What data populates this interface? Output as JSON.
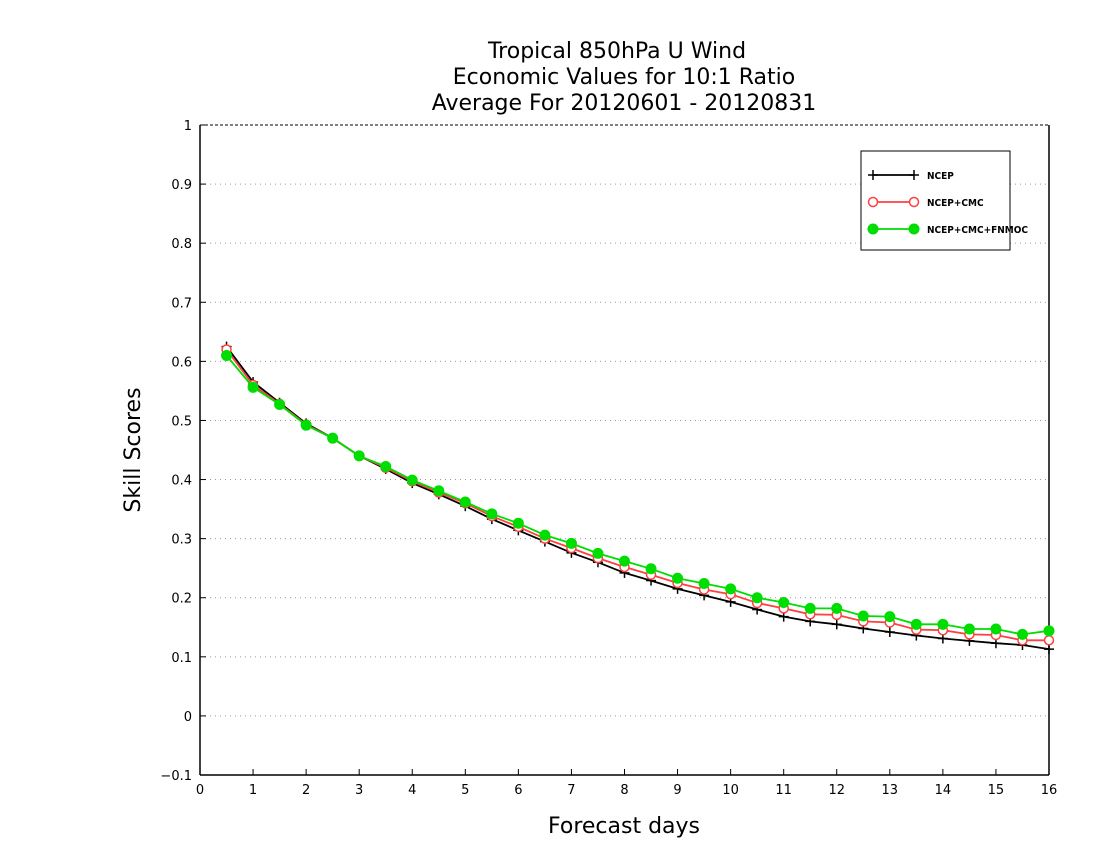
{
  "chart_data": {
    "type": "line",
    "title": [
      "Tropical 850hPa U Wind",
      "Economic Values for 10:1 Ratio",
      "Average For 20120601 - 20120831"
    ],
    "xlabel": "Forecast days",
    "ylabel": "Skill Scores",
    "xlim": [
      0,
      16
    ],
    "ylim": [
      -0.1,
      1
    ],
    "xticks": [
      "0",
      "1",
      "2",
      "3",
      "4",
      "5",
      "6",
      "7",
      "8",
      "9",
      "10",
      "11",
      "12",
      "13",
      "14",
      "15",
      "16"
    ],
    "yticks": [
      "−0.1",
      "0",
      "0.1",
      "0.2",
      "0.3",
      "0.4",
      "0.5",
      "0.6",
      "0.7",
      "0.8",
      "0.9",
      "1"
    ],
    "grid": true,
    "legend_position": "top-right",
    "x": [
      0.5,
      1,
      1.5,
      2,
      2.5,
      3,
      3.5,
      4,
      4.5,
      5,
      5.5,
      6,
      6.5,
      7,
      7.5,
      8,
      8.5,
      9,
      9.5,
      10,
      10.5,
      11,
      11.5,
      12,
      12.5,
      13,
      13.5,
      14,
      14.5,
      15,
      15.5,
      16
    ],
    "series": [
      {
        "name": "NCEP",
        "color": "#000000",
        "marker": "plus",
        "values": [
          0.625,
          0.565,
          0.53,
          0.495,
          0.47,
          0.44,
          0.418,
          0.394,
          0.375,
          0.355,
          0.333,
          0.314,
          0.295,
          0.276,
          0.26,
          0.242,
          0.229,
          0.215,
          0.204,
          0.193,
          0.18,
          0.168,
          0.16,
          0.155,
          0.148,
          0.142,
          0.136,
          0.131,
          0.127,
          0.123,
          0.12,
          0.113
        ]
      },
      {
        "name": "NCEP+CMC",
        "color": "#ff4040",
        "marker": "circle-open",
        "values": [
          0.62,
          0.56,
          0.528,
          0.493,
          0.47,
          0.44,
          0.42,
          0.397,
          0.378,
          0.36,
          0.338,
          0.32,
          0.3,
          0.284,
          0.267,
          0.252,
          0.239,
          0.225,
          0.214,
          0.206,
          0.191,
          0.182,
          0.172,
          0.171,
          0.16,
          0.158,
          0.146,
          0.145,
          0.138,
          0.137,
          0.128,
          0.128
        ]
      },
      {
        "name": "NCEP+CMC+FNMOC",
        "color": "#00dd00",
        "marker": "circle-filled",
        "values": [
          0.61,
          0.556,
          0.527,
          0.492,
          0.47,
          0.44,
          0.422,
          0.399,
          0.381,
          0.362,
          0.342,
          0.326,
          0.306,
          0.292,
          0.275,
          0.262,
          0.249,
          0.233,
          0.224,
          0.215,
          0.2,
          0.192,
          0.182,
          0.182,
          0.169,
          0.168,
          0.155,
          0.155,
          0.147,
          0.147,
          0.138,
          0.144
        ]
      }
    ]
  }
}
